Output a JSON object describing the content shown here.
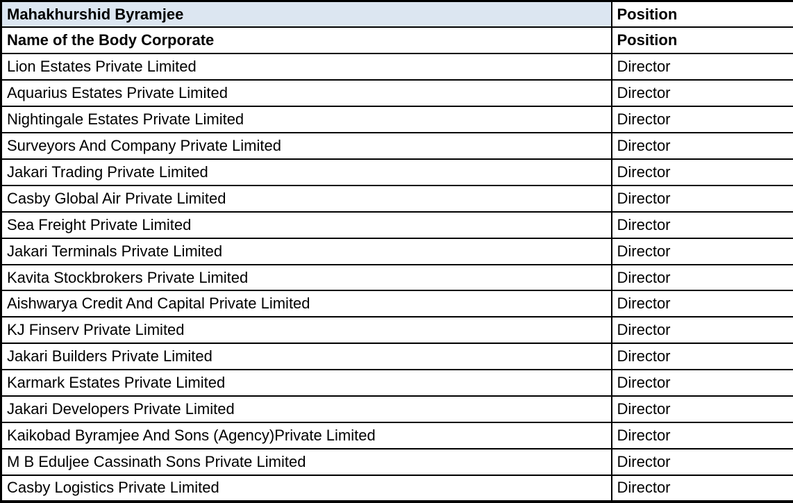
{
  "colors": {
    "header_highlight_bg": "#dce6f1",
    "border": "#000000",
    "text": "#000000"
  },
  "table": {
    "person_name": "Mahakhurshid Byramjee",
    "person_position_label": "Position",
    "column_headers": {
      "name": "Name of the Body Corporate",
      "position": "Position"
    },
    "rows": [
      {
        "name": "Lion Estates Private Limited",
        "position": "Director"
      },
      {
        "name": "Aquarius Estates Private Limited",
        "position": "Director"
      },
      {
        "name": "Nightingale Estates Private Limited",
        "position": "Director"
      },
      {
        "name": "Surveyors And Company Private Limited",
        "position": "Director"
      },
      {
        "name": "Jakari Trading Private Limited",
        "position": "Director"
      },
      {
        "name": "Casby Global Air Private Limited",
        "position": "Director"
      },
      {
        "name": "Sea Freight Private Limited",
        "position": "Director"
      },
      {
        "name": "Jakari Terminals Private Limited",
        "position": "Director"
      },
      {
        "name": "Kavita Stockbrokers Private Limited",
        "position": "Director"
      },
      {
        "name": "Aishwarya Credit And Capital Private Limited",
        "position": "Director"
      },
      {
        "name": "KJ Finserv Private Limited",
        "position": "Director"
      },
      {
        "name": "Jakari Builders Private Limited",
        "position": "Director"
      },
      {
        "name": "Karmark Estates Private Limited",
        "position": "Director"
      },
      {
        "name": "Jakari Developers Private Limited",
        "position": "Director"
      },
      {
        "name": "Kaikobad Byramjee And Sons (Agency)Private Limited",
        "position": "Director"
      },
      {
        "name": "M B Eduljee Cassinath Sons Private Limited",
        "position": "Director"
      },
      {
        "name": "Casby Logistics Private Limited",
        "position": "Director"
      }
    ]
  }
}
